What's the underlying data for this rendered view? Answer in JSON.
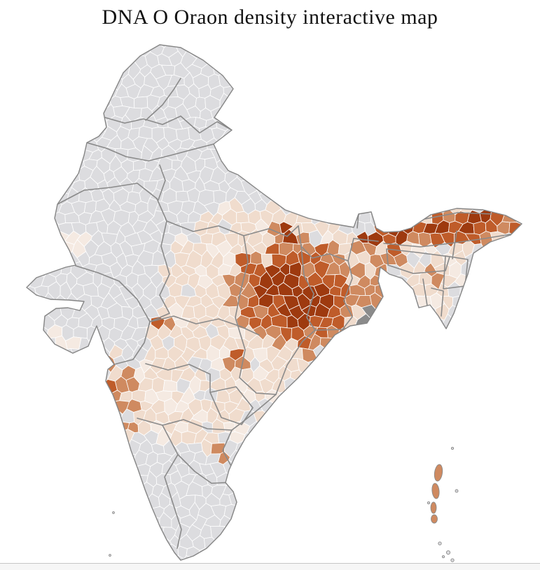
{
  "title": "DNA O Oraon density interactive map",
  "map": {
    "subject": "India district-level choropleth of Oraon DNA density",
    "palette": {
      "none": "#dcdcdf",
      "very_low": "#f5eae2",
      "low": "#f0dccd",
      "medium": "#cf8a60",
      "high": "#bf5c2a",
      "very_high": "#9e3a0f",
      "urban": "#8b8b8b"
    },
    "borders": {
      "district": "#ffffff",
      "state": "#8a8a8a",
      "coast": "#858585",
      "sea": "#ffffff"
    },
    "regions": [
      {
        "id": "kolkata-delta",
        "intensity": "urban"
      },
      {
        "id": "kutch-west-tip",
        "intensity": "urban"
      },
      {
        "id": "chotanagpur-core",
        "intensity": "very_high"
      },
      {
        "id": "chotanagpur-core-east",
        "intensity": "very_high"
      },
      {
        "id": "duars-chicken-neck",
        "intensity": "very_high"
      },
      {
        "id": "assam-valley-west",
        "intensity": "very_high"
      },
      {
        "id": "assam-valley-mid",
        "intensity": "very_high"
      },
      {
        "id": "assam-valley-east",
        "intensity": "very_high"
      },
      {
        "id": "east-up-border-spot",
        "intensity": "very_high"
      },
      {
        "id": "core-ring",
        "intensity": "high"
      },
      {
        "id": "ring-northwest-spur",
        "intensity": "high"
      },
      {
        "id": "assam-valley-band",
        "intensity": "high"
      },
      {
        "id": "core-halo",
        "intensity": "medium"
      },
      {
        "id": "west-bengal-band",
        "intensity": "medium"
      },
      {
        "id": "konkan-mumbai",
        "intensity": "medium"
      },
      {
        "id": "goa-north-karnataka-coast",
        "intensity": "medium"
      },
      {
        "id": "south-gujarat-coast",
        "intensity": "medium"
      },
      {
        "id": "cachar-hills",
        "intensity": "medium"
      },
      {
        "id": "garo-hills",
        "intensity": "medium"
      },
      {
        "id": "west-mp-spot",
        "intensity": "medium"
      },
      {
        "id": "vidarbha-spot",
        "intensity": "medium"
      },
      {
        "id": "coastal-andhra-spot",
        "intensity": "medium"
      },
      {
        "id": "central-east-belt",
        "intensity": "low"
      },
      {
        "id": "northeast-hills",
        "intensity": "low"
      },
      {
        "id": "saurashtra-coast",
        "intensity": "very_low"
      },
      {
        "id": "west-rajasthan-spot",
        "intensity": "very_low"
      }
    ],
    "islands": {
      "andaman_intensity": "medium",
      "nicobar_intensity": "none",
      "lakshadweep_intensity": "none"
    }
  }
}
